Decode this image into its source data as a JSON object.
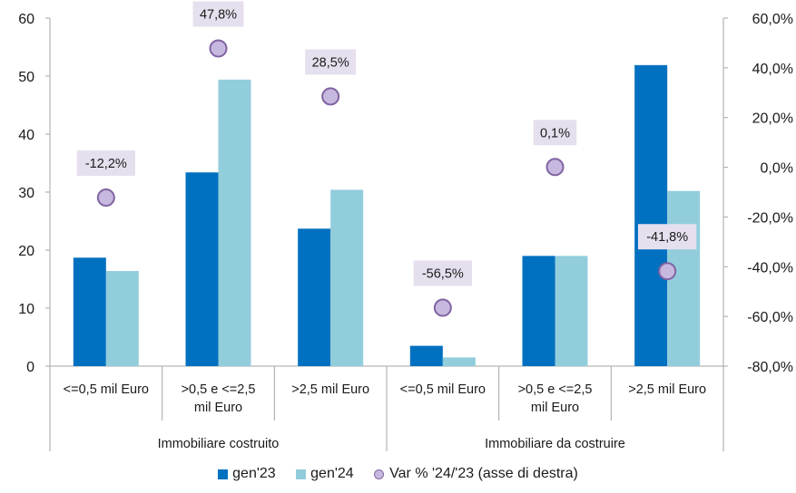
{
  "chart_data": {
    "type": "bar",
    "groups": [
      {
        "label": "Immobiliare costruito",
        "categories": [
          "<=0,5 mil Euro",
          ">0,5 e <=2,5 mil Euro",
          ">2,5 mil Euro"
        ]
      },
      {
        "label": "Immobiliare da costruire",
        "categories": [
          "<=0,5 mil Euro",
          ">0,5 e <=2,5 mil Euro",
          ">2,5 mil Euro"
        ]
      }
    ],
    "categories": [
      [
        "<=0,5 mil Euro"
      ],
      [
        ">0,5 e <=2,5",
        "mil Euro"
      ],
      [
        ">2,5 mil Euro"
      ],
      [
        "<=0,5 mil Euro"
      ],
      [
        ">0,5 e <=2,5",
        "mil Euro"
      ],
      [
        ">2,5 mil Euro"
      ]
    ],
    "series": [
      {
        "name": "gen'23",
        "type": "bar",
        "axis": "left",
        "color": "#0070c0",
        "values": [
          18.7,
          33.4,
          23.7,
          3.5,
          19.0,
          51.9
        ]
      },
      {
        "name": "gen'24",
        "type": "bar",
        "axis": "left",
        "color": "#92cddc",
        "values": [
          16.4,
          49.4,
          30.4,
          1.5,
          19.0,
          30.2
        ]
      },
      {
        "name": "Var % '24/'23 (asse di destra)",
        "type": "scatter",
        "axis": "right",
        "color": "#c7b8e0",
        "edge_color": "#8064a2",
        "values": [
          -12.2,
          47.8,
          28.5,
          -56.5,
          0.1,
          -41.8
        ],
        "labels": [
          "-12,2%",
          "47,8%",
          "28,5%",
          "-56,5%",
          "0,1%",
          "-41,8%"
        ]
      }
    ],
    "y_left": {
      "min": 0,
      "max": 60,
      "step": 10,
      "ticks": [
        "0",
        "10",
        "20",
        "30",
        "40",
        "50",
        "60"
      ]
    },
    "y_right": {
      "min": -80,
      "max": 60,
      "step": 20,
      "ticks": [
        "-80,0%",
        "-60,0%",
        "-40,0%",
        "-20,0%",
        "0,0%",
        "20,0%",
        "40,0%",
        "60,0%"
      ]
    },
    "grid": false,
    "legend_position": "bottom"
  }
}
